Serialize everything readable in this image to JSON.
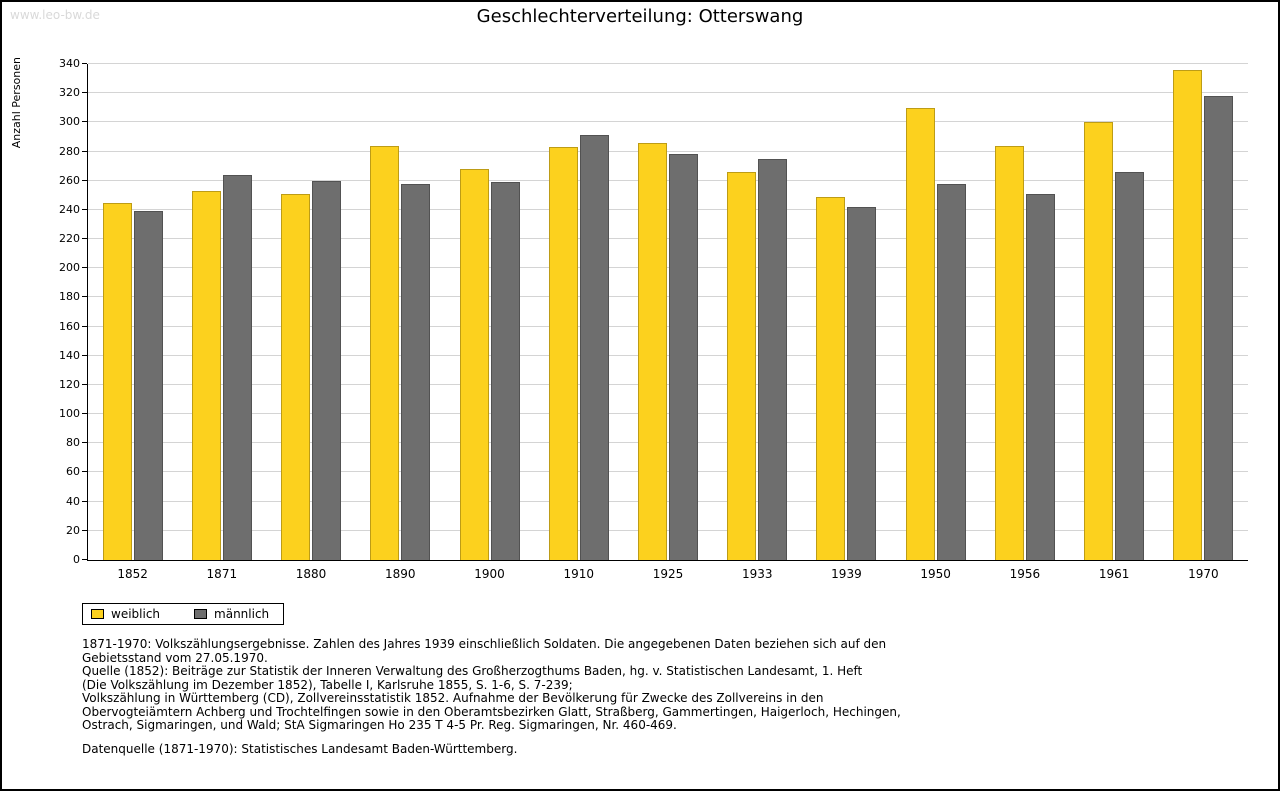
{
  "watermark": "www.leo-bw.de",
  "chart_data": {
    "type": "bar",
    "title": "Geschlechterverteilung: Otterswang",
    "xlabel": "",
    "ylabel": "Anzahl Personen",
    "categories": [
      "1852",
      "1871",
      "1880",
      "1890",
      "1900",
      "1910",
      "1925",
      "1933",
      "1939",
      "1950",
      "1956",
      "1961",
      "1970"
    ],
    "series": [
      {
        "name": "weiblich",
        "color": "#fcd11e",
        "values": [
          245,
          253,
          251,
          284,
          268,
          283,
          286,
          266,
          249,
          310,
          284,
          300,
          336
        ]
      },
      {
        "name": "männlich",
        "color": "#6e6e6e",
        "values": [
          239,
          264,
          260,
          258,
          259,
          291,
          278,
          275,
          242,
          258,
          251,
          266,
          318
        ]
      }
    ],
    "ylim": [
      0,
      340
    ],
    "ytick_step": 20,
    "grid": true,
    "legend_position": "bottom-left"
  },
  "footnotes": {
    "lines": [
      "1871-1970: Volkszählungsergebnisse. Zahlen des Jahres 1939 einschließlich Soldaten. Die angegebenen Daten beziehen sich auf den",
      "Gebietsstand vom 27.05.1970.",
      "Quelle (1852): Beiträge zur Statistik der Inneren Verwaltung des Großherzogthums Baden, hg. v. Statistischen Landesamt, 1. Heft",
      "(Die Volkszählung im Dezember 1852), Tabelle I, Karlsruhe 1855, S. 1-6, S. 7-239;",
      "Volkszählung in Württemberg (CD), Zollvereinsstatistik 1852. Aufnahme der Bevölkerung für Zwecke des Zollvereins in den",
      "Obervogteiämtern Achberg und Trochtelfingen sowie in den Oberamtsbezirken Glatt, Straßberg, Gammertingen, Haigerloch, Hechingen,",
      "Ostrach, Sigmaringen, und Wald; StA Sigmaringen Ho 235 T 4-5 Pr. Reg. Sigmaringen, Nr. 460-469."
    ],
    "datasource": "Datenquelle (1871-1970): Statistisches Landesamt Baden-Württemberg."
  }
}
